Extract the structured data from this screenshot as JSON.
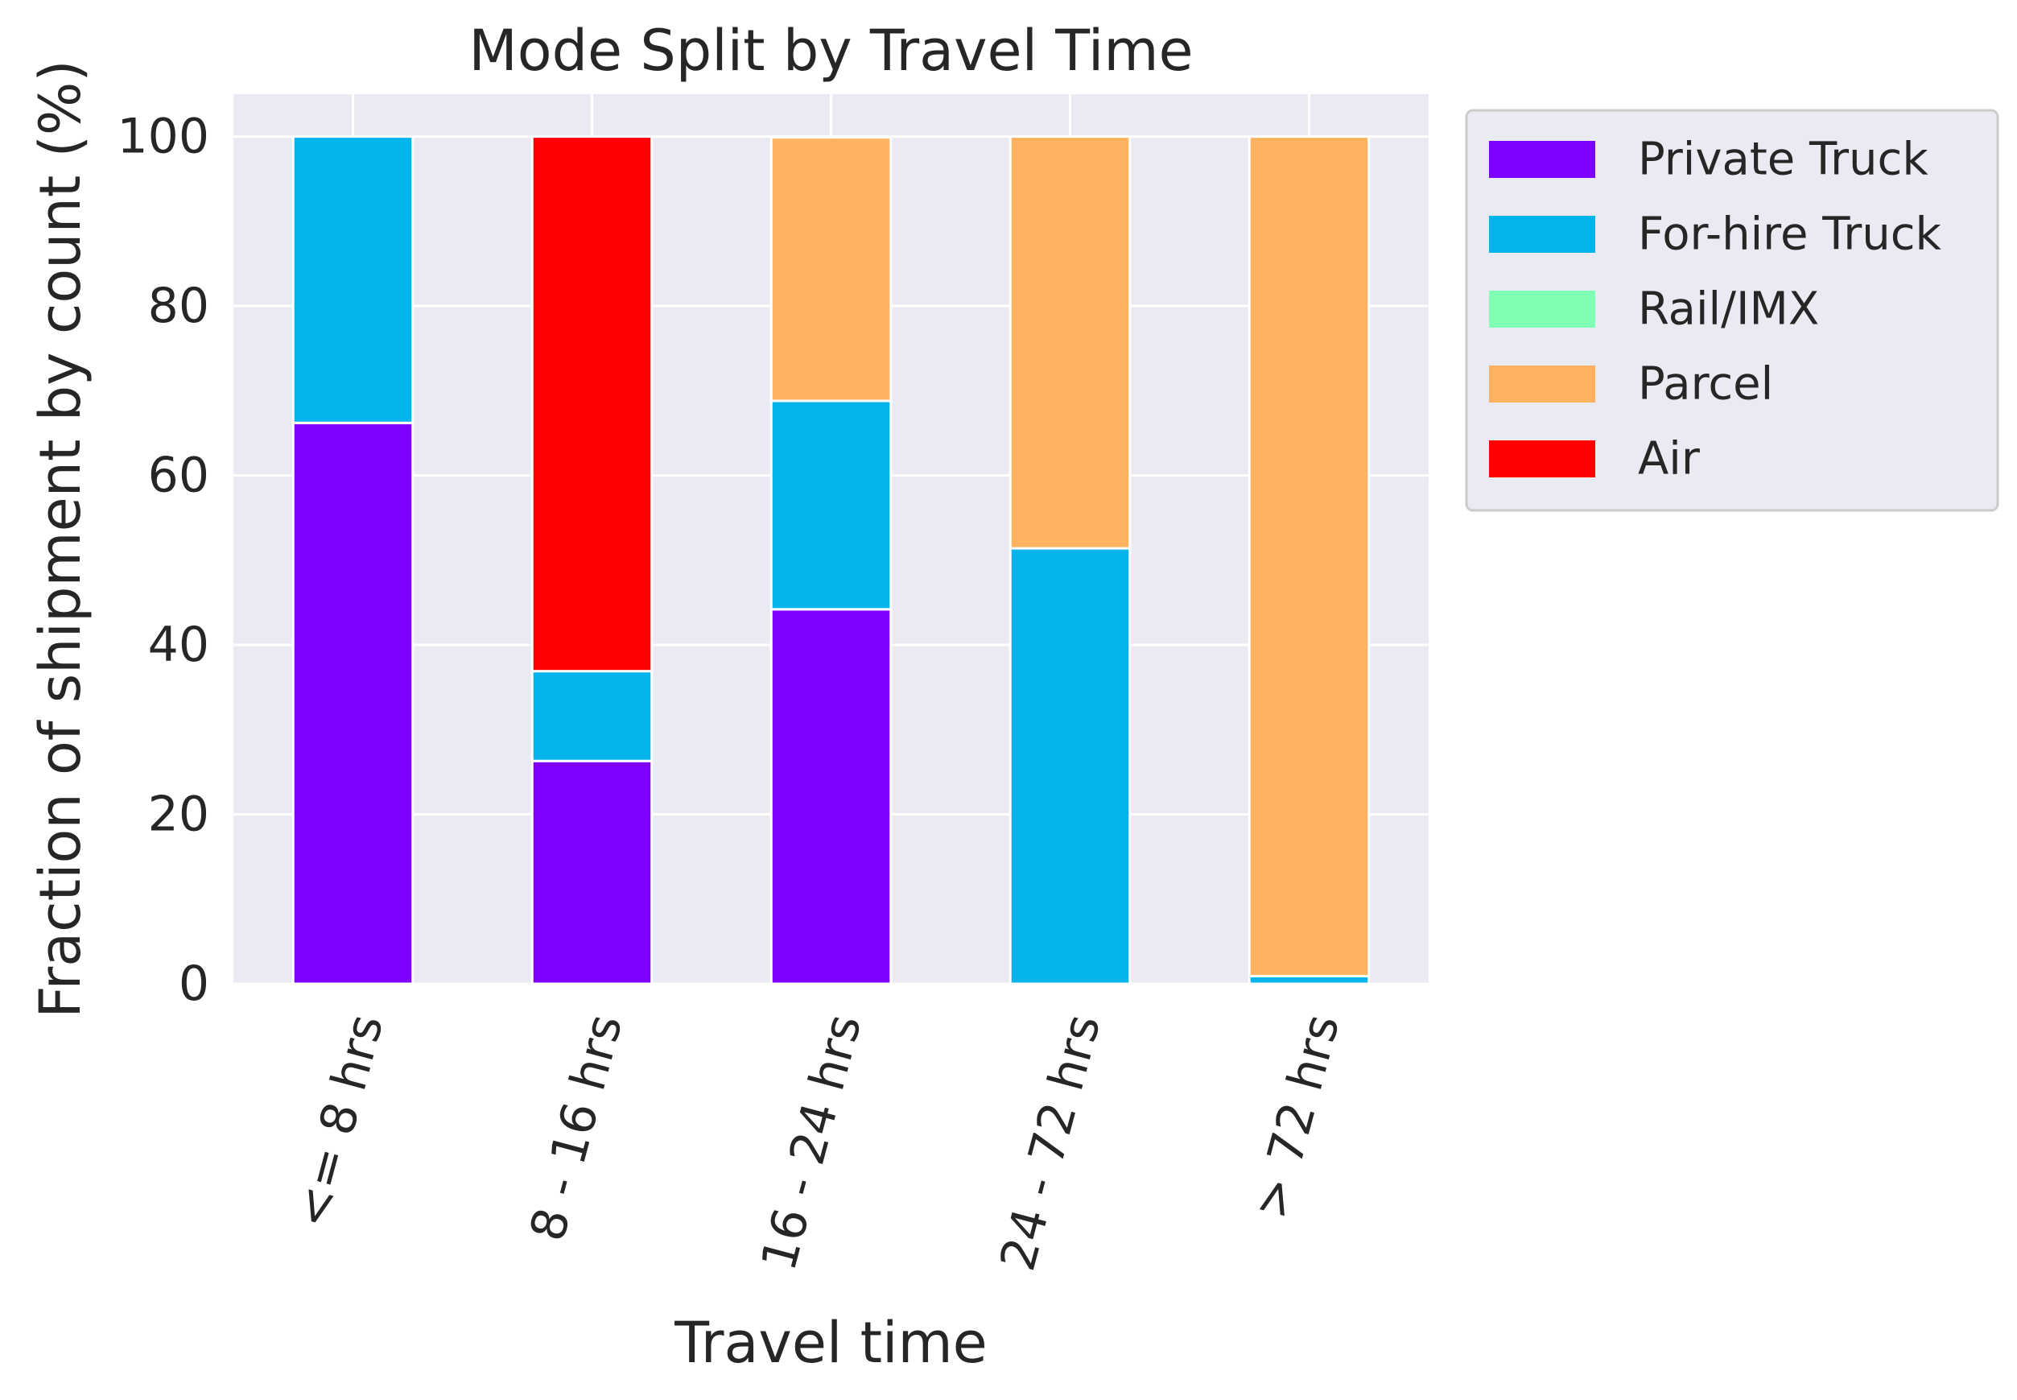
{
  "chart_data": {
    "type": "bar",
    "stacked": true,
    "title": "Mode Split by Travel Time",
    "xlabel": "Travel time",
    "ylabel": "Fraction of shipment by count (%)",
    "ylim": [
      0,
      105
    ],
    "yticks": [
      "0",
      "20",
      "40",
      "60",
      "80",
      "100"
    ],
    "grid": true,
    "legend_position": "outside-top-right",
    "categories": [
      "<= 8 hrs",
      "8 - 16 hrs",
      "16 - 24 hrs",
      "24 - 72 hrs",
      "> 72 hrs"
    ],
    "series": [
      {
        "name": "Private Truck",
        "color": "#8000ff",
        "values": [
          66.2,
          26.3,
          44.2,
          0,
          0
        ]
      },
      {
        "name": "For-hire Truck",
        "color": "#02b4eb",
        "values": [
          33.8,
          10.6,
          24.6,
          51.4,
          0.9
        ]
      },
      {
        "name": "Rail/IMX",
        "color": "#80ffb4",
        "values": [
          0,
          0,
          0,
          0,
          0
        ]
      },
      {
        "name": "Parcel",
        "color": "#ffb360",
        "values": [
          0,
          0,
          31.1,
          48.6,
          99.1
        ]
      },
      {
        "name": "Air",
        "color": "#ff0000",
        "values": [
          0,
          63.1,
          0,
          0,
          0
        ]
      }
    ]
  }
}
